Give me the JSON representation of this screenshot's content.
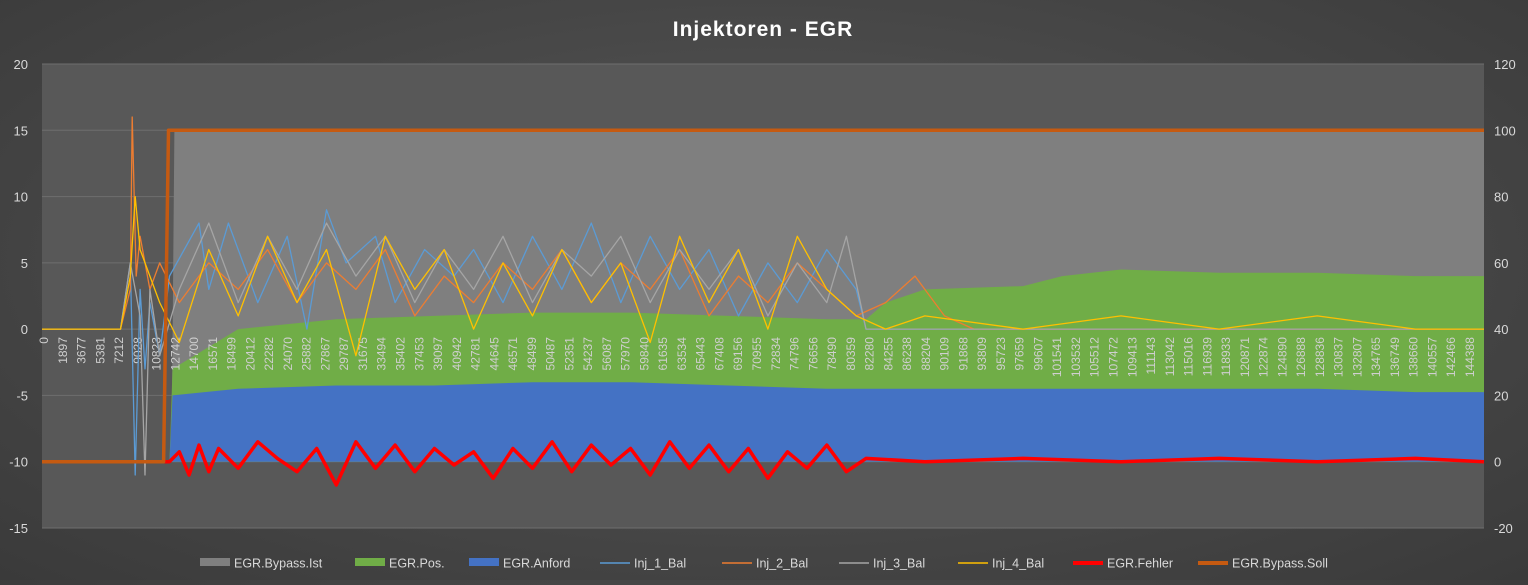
{
  "chart_data": {
    "type": "line",
    "title": "Injektoren - EGR",
    "y_left": {
      "min": -15,
      "max": 20,
      "step": 5,
      "ticks": [
        "-15",
        "-10",
        "-5",
        "0",
        "5",
        "10",
        "15",
        "20"
      ]
    },
    "y_right": {
      "min": -20,
      "max": 120,
      "step": 20,
      "ticks": [
        "-20",
        "0",
        "20",
        "40",
        "60",
        "80",
        "100",
        "120"
      ]
    },
    "x_range": [
      0,
      147000
    ],
    "x_tick_labels": [
      "0",
      "1897",
      "3677",
      "5381",
      "7212",
      "9028",
      "10823",
      "12742",
      "14700",
      "16571",
      "18499",
      "20412",
      "22282",
      "24070",
      "25882",
      "27867",
      "29787",
      "31675",
      "33494",
      "35402",
      "37453",
      "39097",
      "40942",
      "42781",
      "44645",
      "46571",
      "48499",
      "50487",
      "52351",
      "54237",
      "56087",
      "57970",
      "59840",
      "61635",
      "63534",
      "65443",
      "67408",
      "69156",
      "70955",
      "72834",
      "74796",
      "76656",
      "78490",
      "80359",
      "82280",
      "84255",
      "86238",
      "88204",
      "90109",
      "91868",
      "93809",
      "95723",
      "97659",
      "99607",
      "101541",
      "103532",
      "105512",
      "107472",
      "109413",
      "111143",
      "113042",
      "115016",
      "116939",
      "118933",
      "120871",
      "122874",
      "124890",
      "126888",
      "128836",
      "130837",
      "132807",
      "134765",
      "136749",
      "138660",
      "140557",
      "142466",
      "144388"
    ],
    "legend": [
      "EGR.Bypass.Ist",
      "EGR.Pos.",
      "EGR.Anford",
      "Inj_1_Bal",
      "Inj_2_Bal",
      "Inj_3_Bal",
      "Inj_4_Bal",
      "EGR.Fehler",
      "EGR.Bypass.Soll"
    ],
    "legend_position": "bottom",
    "series": [
      {
        "name": "EGR.Bypass.Ist",
        "kind": "area",
        "axis": "right",
        "color": "#7f7f7f",
        "x": [
          0,
          10200,
          13200,
          13500,
          147000
        ],
        "y": [
          0,
          0,
          0,
          100,
          100
        ]
      },
      {
        "name": "EGR.Pos.",
        "kind": "area",
        "axis": "right",
        "color": "#70ad47",
        "x": [
          0,
          13000,
          13300,
          20000,
          30000,
          40000,
          50000,
          60000,
          70000,
          80000,
          84000,
          86000,
          90000,
          100000,
          104000,
          110000,
          120000,
          130000,
          140000,
          147000
        ],
        "y": [
          0,
          0,
          28,
          40,
          43,
          44,
          45,
          45,
          44,
          43,
          43,
          48,
          52,
          53,
          56,
          58,
          57,
          57,
          56,
          56
        ]
      },
      {
        "name": "EGR.Anford",
        "kind": "area",
        "axis": "right",
        "color": "#4472c4",
        "x": [
          0,
          13000,
          13300,
          20000,
          30000,
          40000,
          50000,
          60000,
          70000,
          80000,
          84000,
          90000,
          100000,
          110000,
          120000,
          130000,
          140000,
          147000
        ],
        "y": [
          0,
          0,
          20,
          22,
          23,
          23,
          24,
          24,
          23,
          22,
          22,
          22,
          22,
          22,
          22,
          22,
          21,
          21
        ]
      },
      {
        "name": "Inj_1_Bal",
        "kind": "line",
        "axis": "left",
        "color": "#5b9bd5",
        "x": [
          0,
          8000,
          9000,
          9500,
          10000,
          10500,
          11000,
          12000,
          13000,
          16000,
          17000,
          19000,
          22000,
          25000,
          27000,
          29000,
          31000,
          34000,
          36000,
          39000,
          42000,
          44000,
          47000,
          50000,
          53000,
          56000,
          59000,
          62000,
          65000,
          68000,
          71000,
          74000,
          77000,
          80000,
          83000,
          84000,
          147000
        ],
        "y": [
          0,
          0,
          5,
          -11,
          3,
          -3,
          2,
          -2,
          4,
          8,
          3,
          8,
          2,
          7,
          0,
          9,
          5,
          7,
          2,
          6,
          4,
          6,
          2,
          7,
          3,
          8,
          2,
          7,
          3,
          6,
          1,
          5,
          2,
          6,
          3,
          0,
          0
        ]
      },
      {
        "name": "Inj_2_Bal",
        "kind": "line",
        "axis": "left",
        "color": "#ed7d31",
        "x": [
          0,
          8000,
          9000,
          9200,
          9600,
          10000,
          11000,
          12000,
          14000,
          17000,
          20000,
          23000,
          26000,
          29000,
          32000,
          35000,
          38000,
          41000,
          44000,
          47000,
          50000,
          53000,
          56000,
          59000,
          62000,
          65000,
          68000,
          71000,
          74000,
          77000,
          80000,
          83000,
          86000,
          89000,
          92000,
          95000,
          147000
        ],
        "y": [
          0,
          0,
          3,
          16,
          4,
          7,
          3,
          5,
          2,
          5,
          3,
          6,
          2,
          5,
          3,
          6,
          1,
          4,
          2,
          5,
          3,
          6,
          2,
          5,
          3,
          6,
          1,
          4,
          2,
          5,
          3,
          1,
          2,
          4,
          1,
          0,
          0
        ]
      },
      {
        "name": "Inj_3_Bal",
        "kind": "line",
        "axis": "left",
        "color": "#a5a5a5",
        "x": [
          0,
          8000,
          9000,
          10000,
          10500,
          11000,
          12000,
          14000,
          17000,
          20000,
          23000,
          26000,
          29000,
          32000,
          35000,
          38000,
          41000,
          44000,
          47000,
          50000,
          53000,
          56000,
          59000,
          62000,
          65000,
          68000,
          71000,
          74000,
          77000,
          80000,
          82000,
          84000,
          147000
        ],
        "y": [
          0,
          0,
          5,
          1,
          -11,
          3,
          -2,
          3,
          8,
          2,
          7,
          3,
          8,
          4,
          7,
          2,
          6,
          3,
          7,
          2,
          6,
          4,
          7,
          2,
          6,
          3,
          6,
          1,
          5,
          2,
          7,
          0,
          0
        ]
      },
      {
        "name": "Inj_4_Bal",
        "kind": "line",
        "axis": "left",
        "color": "#ffc000",
        "x": [
          0,
          8000,
          9000,
          9500,
          10000,
          11000,
          12000,
          14000,
          17000,
          20000,
          23000,
          26000,
          29000,
          32000,
          35000,
          38000,
          41000,
          44000,
          47000,
          50000,
          53000,
          56000,
          59000,
          62000,
          65000,
          68000,
          71000,
          74000,
          77000,
          80000,
          83000,
          86000,
          90000,
          100000,
          110000,
          120000,
          130000,
          140000,
          147000
        ],
        "y": [
          0,
          0,
          4,
          10,
          6,
          4,
          2,
          -1,
          6,
          1,
          7,
          2,
          6,
          -2,
          7,
          3,
          6,
          0,
          5,
          1,
          6,
          2,
          5,
          -1,
          7,
          2,
          6,
          0,
          7,
          3,
          1,
          0,
          1,
          0,
          1,
          0,
          1,
          0,
          0
        ]
      },
      {
        "name": "EGR.Fehler",
        "kind": "line",
        "axis": "right",
        "color": "#ff0000",
        "x": [
          0,
          13000,
          14000,
          15000,
          16000,
          17000,
          18000,
          20000,
          22000,
          24000,
          26000,
          28000,
          30000,
          32000,
          34000,
          36000,
          38000,
          40000,
          42000,
          44000,
          46000,
          48000,
          50000,
          52000,
          54000,
          56000,
          58000,
          60000,
          62000,
          64000,
          66000,
          68000,
          70000,
          72000,
          74000,
          76000,
          78000,
          80000,
          82000,
          84000,
          90000,
          100000,
          110000,
          120000,
          130000,
          140000,
          147000
        ],
        "y": [
          0,
          0,
          3,
          -4,
          5,
          -3,
          4,
          -2,
          6,
          1,
          -3,
          4,
          -7,
          6,
          -2,
          5,
          -3,
          4,
          -1,
          3,
          -5,
          4,
          -2,
          6,
          -3,
          5,
          -1,
          4,
          -4,
          6,
          -2,
          5,
          -3,
          4,
          -5,
          3,
          -2,
          5,
          -3,
          1,
          0,
          1,
          0,
          1,
          0,
          1,
          0
        ]
      },
      {
        "name": "EGR.Bypass.Soll",
        "kind": "line",
        "axis": "right",
        "color": "#c55a11",
        "x": [
          0,
          12400,
          12900,
          147000
        ],
        "y": [
          0,
          0,
          100,
          100
        ]
      }
    ]
  }
}
